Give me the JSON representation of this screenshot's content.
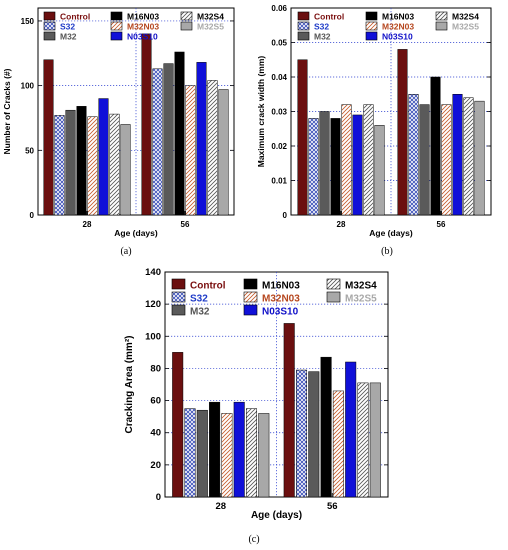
{
  "series_styles": [
    {
      "name": "Control",
      "fill": "#6b0f0f",
      "pattern": "solid",
      "legend_color": "#7a0f0f"
    },
    {
      "name": "S32",
      "fill": "#3b4fb8",
      "pattern": "cross",
      "legend_color": "#1e3bc8"
    },
    {
      "name": "M32",
      "fill": "#5a5a5a",
      "pattern": "solid",
      "legend_color": "#555555"
    },
    {
      "name": "M16N03",
      "fill": "#000000",
      "pattern": "solid",
      "legend_color": "#000000"
    },
    {
      "name": "M32N03",
      "fill": "#c45a2a",
      "pattern": "hatch",
      "legend_color": "#b5461e"
    },
    {
      "name": "N03S10",
      "fill": "#1010d8",
      "pattern": "solid",
      "legend_color": "#1010c8"
    },
    {
      "name": "M32S4",
      "fill": "#555555",
      "pattern": "hatch",
      "legend_color": "#000000"
    },
    {
      "name": "M32S5",
      "fill": "#a8a8a8",
      "pattern": "solid",
      "legend_color": "#a8a8a8"
    }
  ],
  "chart_data": [
    {
      "type": "bar",
      "panel_label": "(a)",
      "xlabel": "Age (days)",
      "ylabel": "Number of Cracks (#)",
      "categories": [
        "28",
        "56"
      ],
      "ylim": [
        0,
        160
      ],
      "yticks": [
        0,
        50,
        100,
        150
      ],
      "ytick_labels": [
        "0",
        "50",
        "100",
        "150"
      ],
      "grid": true,
      "legend_position": "top",
      "series": [
        {
          "name": "Control",
          "values": [
            120,
            140
          ]
        },
        {
          "name": "S32",
          "values": [
            77,
            113
          ]
        },
        {
          "name": "M32",
          "values": [
            81,
            117
          ]
        },
        {
          "name": "M16N03",
          "values": [
            84,
            126
          ]
        },
        {
          "name": "M32N03",
          "values": [
            76,
            100
          ]
        },
        {
          "name": "N03S10",
          "values": [
            90,
            118
          ]
        },
        {
          "name": "M32S4",
          "values": [
            78,
            104
          ]
        },
        {
          "name": "M32S5",
          "values": [
            70,
            97
          ]
        }
      ]
    },
    {
      "type": "bar",
      "panel_label": "(b)",
      "xlabel": "Age (days)",
      "ylabel": "Maximum crack width (mm)",
      "categories": [
        "28",
        "56"
      ],
      "ylim": [
        0,
        0.06
      ],
      "yticks": [
        0,
        0.01,
        0.02,
        0.03,
        0.04,
        0.05,
        0.06
      ],
      "ytick_labels": [
        "0",
        "0.01",
        "0.02",
        "0.03",
        "0.04",
        "0.05",
        "0.06"
      ],
      "grid": true,
      "legend_position": "top",
      "series": [
        {
          "name": "Control",
          "values": [
            0.045,
            0.048
          ]
        },
        {
          "name": "S32",
          "values": [
            0.028,
            0.035
          ]
        },
        {
          "name": "M32",
          "values": [
            0.03,
            0.032
          ]
        },
        {
          "name": "M16N03",
          "values": [
            0.028,
            0.04
          ]
        },
        {
          "name": "M32N03",
          "values": [
            0.032,
            0.032
          ]
        },
        {
          "name": "N03S10",
          "values": [
            0.029,
            0.035
          ]
        },
        {
          "name": "M32S4",
          "values": [
            0.032,
            0.034
          ]
        },
        {
          "name": "M32S5",
          "values": [
            0.026,
            0.033
          ]
        }
      ]
    },
    {
      "type": "bar",
      "panel_label": "(c)",
      "xlabel": "Age (days)",
      "ylabel": "Cracking Area (mm²)",
      "categories": [
        "28",
        "56"
      ],
      "ylim": [
        0,
        140
      ],
      "yticks": [
        0,
        20,
        40,
        60,
        80,
        100,
        120,
        140
      ],
      "ytick_labels": [
        "0",
        "20",
        "40",
        "60",
        "80",
        "100",
        "120",
        "140"
      ],
      "grid": true,
      "legend_position": "top",
      "series": [
        {
          "name": "Control",
          "values": [
            90,
            108
          ]
        },
        {
          "name": "S32",
          "values": [
            55,
            79
          ]
        },
        {
          "name": "M32",
          "values": [
            54,
            78
          ]
        },
        {
          "name": "M16N03",
          "values": [
            59,
            87
          ]
        },
        {
          "name": "M32N03",
          "values": [
            52,
            66
          ]
        },
        {
          "name": "N03S10",
          "values": [
            59,
            84
          ]
        },
        {
          "name": "M32S4",
          "values": [
            55,
            71
          ]
        },
        {
          "name": "M32S5",
          "values": [
            52,
            71
          ]
        }
      ]
    }
  ]
}
